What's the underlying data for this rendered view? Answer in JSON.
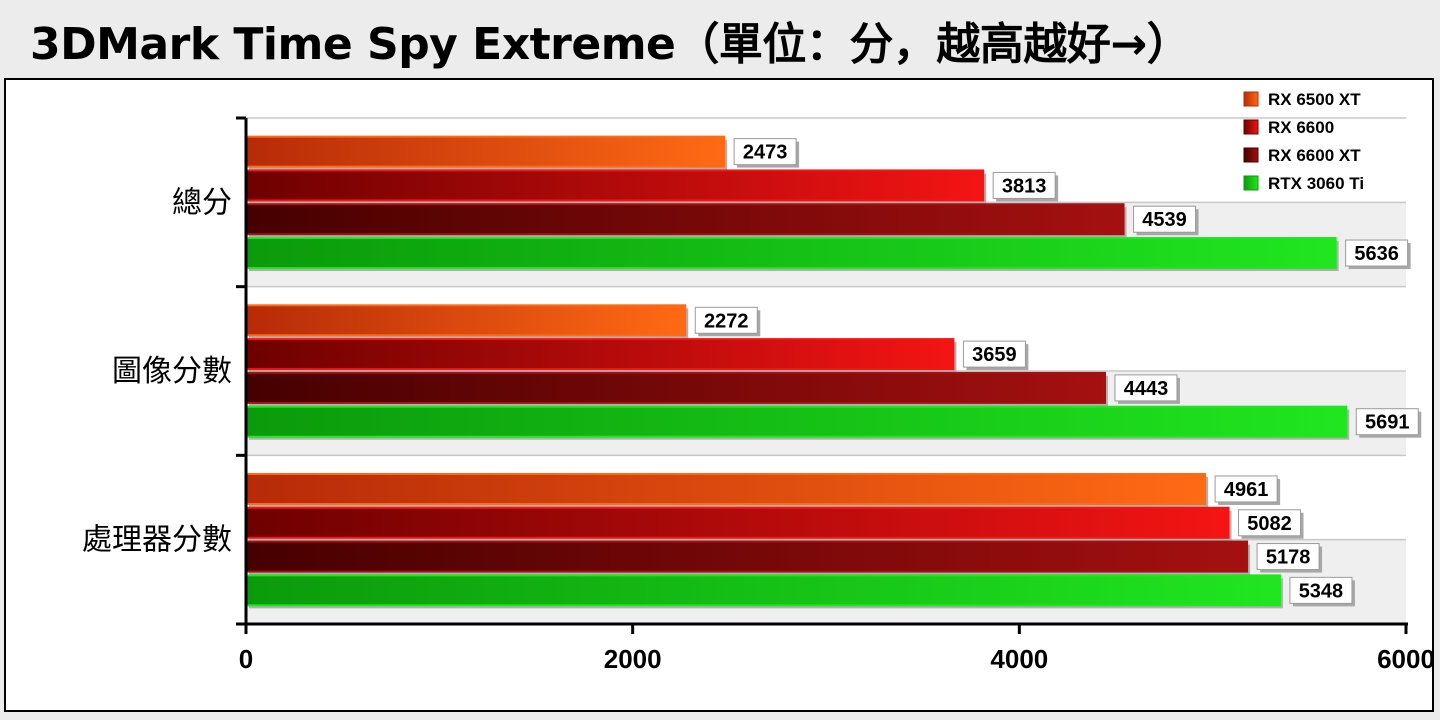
{
  "page": {
    "title": "3DMark Time Spy Extreme（單位：分，越高越好→）"
  },
  "chart_data": {
    "type": "bar",
    "orientation": "horizontal",
    "title": "3DMark Time Spy Extreme（單位：分，越高越好→）",
    "categories": [
      "總分",
      "圖像分數",
      "處理器分數"
    ],
    "series": [
      {
        "name": "RX 6500 XT",
        "values": [
          2473,
          2272,
          4961
        ],
        "color_light": "#ff6a14",
        "color_dark": "#b72a08"
      },
      {
        "name": "RX 6600",
        "values": [
          3813,
          3659,
          5082
        ],
        "color_light": "#f51414",
        "color_dark": "#6e0000"
      },
      {
        "name": "RX 6600 XT",
        "values": [
          4539,
          4443,
          5178
        ],
        "color_light": "#a51010",
        "color_dark": "#460000"
      },
      {
        "name": "RTX 3060 Ti",
        "values": [
          5636,
          5691,
          5348
        ],
        "color_light": "#20e620",
        "color_dark": "#0b9a0b"
      }
    ],
    "xlim": [
      0,
      6000
    ],
    "xticks": [
      0,
      2000,
      4000,
      6000
    ],
    "grid": true,
    "legend_position": "top-right",
    "data_labels": true
  }
}
